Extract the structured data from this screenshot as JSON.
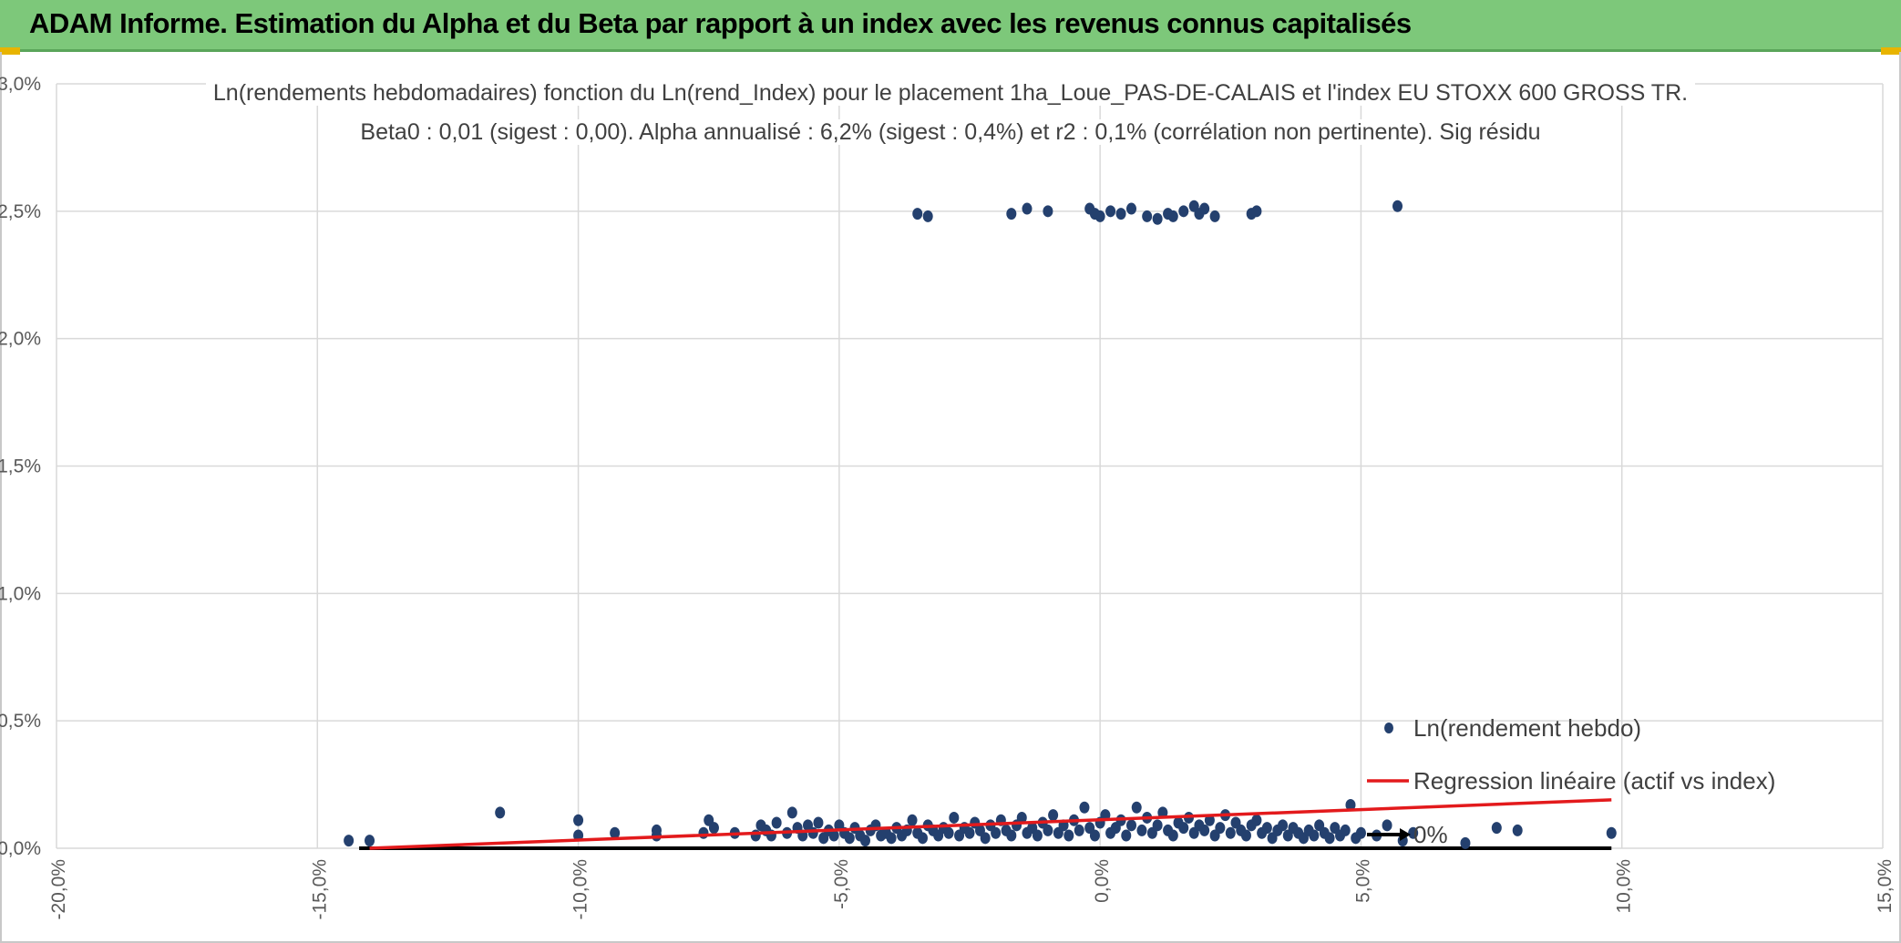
{
  "header": {
    "title": "ADAM Informe. Estimation du Alpha et du Beta par rapport à un index avec les revenus connus capitalisés"
  },
  "colors": {
    "header_bg": "#7dc87a",
    "points": "#24406e",
    "regression": "#e31a1c",
    "zero_line": "#000000",
    "grid": "#d9d9d9",
    "axis_text": "#595959"
  },
  "chart_data": {
    "type": "scatter",
    "title": "Ln(rendements hebdomadaires) fonction du Ln(rend_Index) pour le placement 1ha_Loue_PAS-DE-CALAIS et l'index EU STOXX 600 GROSS TR.",
    "subtitle": "Beta0 : 0,01 (sigest : 0,00). Alpha annualisé : 6,2% (sigest : 0,4%) et r2 : 0,1% (corrélation non pertinente). Sig résidu",
    "xlabel": "",
    "ylabel": "",
    "xlim": [
      -0.2,
      0.15
    ],
    "ylim": [
      0.0,
      0.03
    ],
    "x_ticks": [
      "-20,0%",
      "-15,0%",
      "-10,0%",
      "-5,0%",
      "0,0%",
      "5,0%",
      "10,0%",
      "15,0%"
    ],
    "y_ticks": [
      "0,0%",
      "0,5%",
      "1,0%",
      "1,5%",
      "2,0%",
      "2,5%",
      "3,0%"
    ],
    "grid": true,
    "legend_position": "right",
    "legend": [
      {
        "label": "Ln(rendement hebdo)",
        "kind": "marker"
      },
      {
        "label": "Regression linéaire (actif vs index)",
        "kind": "line"
      },
      {
        "label": "0%",
        "kind": "arrow-line"
      }
    ],
    "regression": {
      "x": [
        -0.14,
        0.098
      ],
      "y": [
        0.0,
        0.0019
      ]
    },
    "zero_line": {
      "x": [
        -0.142,
        0.098
      ],
      "y": [
        0.0,
        0.0
      ]
    },
    "series": [
      {
        "name": "Ln(rendement hebdo)",
        "points": [
          [
            -0.144,
            0.0003
          ],
          [
            -0.14,
            0.0003
          ],
          [
            -0.115,
            0.0014
          ],
          [
            -0.1,
            0.0011
          ],
          [
            -0.1,
            0.0005
          ],
          [
            -0.093,
            0.0006
          ],
          [
            -0.085,
            0.0007
          ],
          [
            -0.085,
            0.0005
          ],
          [
            -0.076,
            0.0006
          ],
          [
            -0.075,
            0.0011
          ],
          [
            -0.074,
            0.0008
          ],
          [
            -0.07,
            0.0006
          ],
          [
            -0.066,
            0.0005
          ],
          [
            -0.065,
            0.0009
          ],
          [
            -0.064,
            0.0007
          ],
          [
            -0.063,
            0.0005
          ],
          [
            -0.062,
            0.001
          ],
          [
            -0.06,
            0.0006
          ],
          [
            -0.059,
            0.0014
          ],
          [
            -0.058,
            0.0008
          ],
          [
            -0.057,
            0.0005
          ],
          [
            -0.056,
            0.0009
          ],
          [
            -0.055,
            0.0006
          ],
          [
            -0.054,
            0.001
          ],
          [
            -0.053,
            0.0004
          ],
          [
            -0.052,
            0.0007
          ],
          [
            -0.051,
            0.0005
          ],
          [
            -0.05,
            0.0009
          ],
          [
            -0.049,
            0.0006
          ],
          [
            -0.048,
            0.0004
          ],
          [
            -0.047,
            0.0008
          ],
          [
            -0.046,
            0.0005
          ],
          [
            -0.045,
            0.0003
          ],
          [
            -0.044,
            0.0007
          ],
          [
            -0.043,
            0.0009
          ],
          [
            -0.042,
            0.0005
          ],
          [
            -0.041,
            0.0006
          ],
          [
            -0.04,
            0.0004
          ],
          [
            -0.039,
            0.0008
          ],
          [
            -0.038,
            0.0005
          ],
          [
            -0.037,
            0.0007
          ],
          [
            -0.036,
            0.0011
          ],
          [
            -0.035,
            0.0006
          ],
          [
            -0.034,
            0.0004
          ],
          [
            -0.033,
            0.0009
          ],
          [
            -0.032,
            0.0007
          ],
          [
            -0.031,
            0.0005
          ],
          [
            -0.03,
            0.0008
          ],
          [
            -0.029,
            0.0006
          ],
          [
            -0.028,
            0.0012
          ],
          [
            -0.027,
            0.0005
          ],
          [
            -0.026,
            0.0008
          ],
          [
            -0.025,
            0.0006
          ],
          [
            -0.024,
            0.001
          ],
          [
            -0.023,
            0.0007
          ],
          [
            -0.022,
            0.0004
          ],
          [
            -0.021,
            0.0009
          ],
          [
            -0.02,
            0.0006
          ],
          [
            -0.019,
            0.0011
          ],
          [
            -0.018,
            0.0007
          ],
          [
            -0.017,
            0.0005
          ],
          [
            -0.016,
            0.0009
          ],
          [
            -0.015,
            0.0012
          ],
          [
            -0.014,
            0.0006
          ],
          [
            -0.013,
            0.0008
          ],
          [
            -0.012,
            0.0005
          ],
          [
            -0.011,
            0.001
          ],
          [
            -0.01,
            0.0007
          ],
          [
            -0.009,
            0.0013
          ],
          [
            -0.008,
            0.0006
          ],
          [
            -0.007,
            0.0009
          ],
          [
            -0.006,
            0.0005
          ],
          [
            -0.005,
            0.0011
          ],
          [
            -0.004,
            0.0007
          ],
          [
            -0.003,
            0.0016
          ],
          [
            -0.002,
            0.0008
          ],
          [
            -0.001,
            0.0005
          ],
          [
            0.0,
            0.001
          ],
          [
            0.001,
            0.0013
          ],
          [
            0.002,
            0.0006
          ],
          [
            0.003,
            0.0008
          ],
          [
            0.004,
            0.0011
          ],
          [
            0.005,
            0.0005
          ],
          [
            0.006,
            0.0009
          ],
          [
            0.007,
            0.0016
          ],
          [
            0.008,
            0.0007
          ],
          [
            0.009,
            0.0012
          ],
          [
            0.01,
            0.0006
          ],
          [
            0.011,
            0.0009
          ],
          [
            0.012,
            0.0014
          ],
          [
            0.013,
            0.0007
          ],
          [
            0.014,
            0.0005
          ],
          [
            0.015,
            0.001
          ],
          [
            0.016,
            0.0008
          ],
          [
            0.017,
            0.0012
          ],
          [
            0.018,
            0.0006
          ],
          [
            0.019,
            0.0009
          ],
          [
            0.02,
            0.0007
          ],
          [
            0.021,
            0.0011
          ],
          [
            0.022,
            0.0005
          ],
          [
            0.023,
            0.0008
          ],
          [
            0.024,
            0.0013
          ],
          [
            0.025,
            0.0006
          ],
          [
            0.026,
            0.001
          ],
          [
            0.027,
            0.0007
          ],
          [
            0.028,
            0.0005
          ],
          [
            0.029,
            0.0009
          ],
          [
            0.03,
            0.0011
          ],
          [
            0.031,
            0.0006
          ],
          [
            0.032,
            0.0008
          ],
          [
            0.033,
            0.0004
          ],
          [
            0.034,
            0.0007
          ],
          [
            0.035,
            0.0009
          ],
          [
            0.036,
            0.0005
          ],
          [
            0.037,
            0.0008
          ],
          [
            0.038,
            0.0006
          ],
          [
            0.039,
            0.0004
          ],
          [
            0.04,
            0.0007
          ],
          [
            0.041,
            0.0005
          ],
          [
            0.042,
            0.0009
          ],
          [
            0.043,
            0.0006
          ],
          [
            0.044,
            0.0004
          ],
          [
            0.045,
            0.0008
          ],
          [
            0.046,
            0.0005
          ],
          [
            0.047,
            0.0007
          ],
          [
            0.048,
            0.0017
          ],
          [
            0.049,
            0.0004
          ],
          [
            0.05,
            0.0006
          ],
          [
            0.053,
            0.0005
          ],
          [
            0.055,
            0.0009
          ],
          [
            0.058,
            0.0003
          ],
          [
            0.06,
            0.0006
          ],
          [
            0.07,
            0.0002
          ],
          [
            0.076,
            0.0008
          ],
          [
            0.08,
            0.0007
          ],
          [
            0.098,
            0.0006
          ],
          [
            -0.035,
            0.0249
          ],
          [
            -0.033,
            0.0248
          ],
          [
            -0.017,
            0.0249
          ],
          [
            -0.014,
            0.0251
          ],
          [
            -0.01,
            0.025
          ],
          [
            -0.002,
            0.0251
          ],
          [
            -0.001,
            0.0249
          ],
          [
            0.0,
            0.0248
          ],
          [
            0.002,
            0.025
          ],
          [
            0.004,
            0.0249
          ],
          [
            0.006,
            0.0251
          ],
          [
            0.009,
            0.0248
          ],
          [
            0.011,
            0.0247
          ],
          [
            0.013,
            0.0249
          ],
          [
            0.014,
            0.0248
          ],
          [
            0.016,
            0.025
          ],
          [
            0.018,
            0.0252
          ],
          [
            0.019,
            0.0249
          ],
          [
            0.02,
            0.0251
          ],
          [
            0.022,
            0.0248
          ],
          [
            0.029,
            0.0249
          ],
          [
            0.03,
            0.025
          ],
          [
            0.057,
            0.0252
          ]
        ]
      }
    ]
  }
}
